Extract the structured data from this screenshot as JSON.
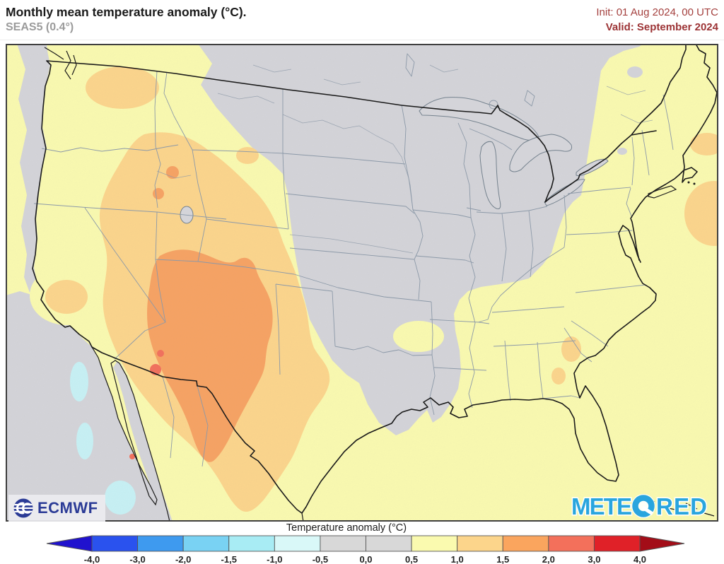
{
  "header": {
    "title": "Monthly mean temperature anomaly (°C).",
    "subtitle": "SEAS5 (0.4°)",
    "init": "Init: 01 Aug 2024, 00 UTC",
    "valid": "Valid: September 2024"
  },
  "branding": {
    "ecmwf": "ECMWF",
    "meteored_pre": "METE",
    "meteored_post": "RED"
  },
  "legend": {
    "title": "Temperature anomaly (°C)",
    "boundaries": [
      "-4,0",
      "-3,0",
      "-2,0",
      "-1,5",
      "-1,0",
      "-0,5",
      "0,0",
      "0,5",
      "1,0",
      "1,5",
      "2,0",
      "3,0",
      "4,0"
    ],
    "segment_colors": [
      "#2A52EE",
      "#3E9AEF",
      "#79D2F3",
      "#A8ECF4",
      "#D9F8F8",
      "#D8D8D8",
      "#D8D8D8",
      "#FAFAAF",
      "#FCD58B",
      "#FAA55E",
      "#F3705B",
      "#E02128"
    ],
    "arrow_left_color": "#2012CE",
    "arrow_right_color": "#A30D18"
  },
  "map_palette": {
    "ocean_neutral": "#D4D4D9",
    "warm_0_5_to_1": "#FAFAB0",
    "warm_1_to_1_5": "#FCD58C",
    "warm_1_5_to_2": "#F7A263",
    "warm_2_to_3": "#F2705C",
    "cool_patch": "#C7F1F5",
    "coastline": "#1A1A1A",
    "state_line": "#8C99A8",
    "lake_outline": "#75828E",
    "frame": "#3F3F3F"
  },
  "colors": {
    "title_text": "#1A1A1A",
    "subtitle_text": "#9B9B9B",
    "init_text": "#A4403E",
    "valid_text": "#9C3335",
    "ecmwf_blue": "#2B3B96",
    "meteored_blue": "#29A5DE"
  }
}
